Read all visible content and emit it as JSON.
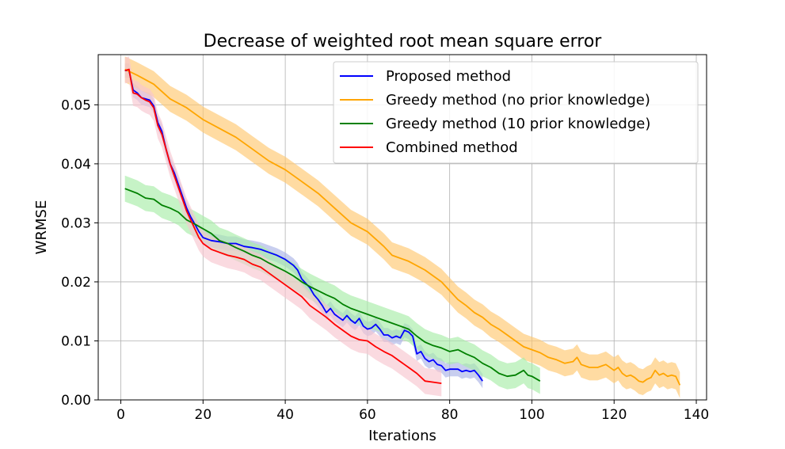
{
  "chart_data": {
    "type": "line",
    "title": "Decrease of weighted root mean square error",
    "xlabel": "Iterations",
    "ylabel": "WRMSE",
    "xlim": [
      -5.5,
      142.5
    ],
    "ylim": [
      0,
      0.0585
    ],
    "xticks": [
      0,
      20,
      40,
      60,
      80,
      100,
      120,
      140
    ],
    "yticks": [
      0,
      0.01,
      0.02,
      0.03,
      0.04,
      0.05
    ],
    "xtick_labels": [
      "0",
      "20",
      "40",
      "60",
      "80",
      "100",
      "120",
      "140"
    ],
    "ytick_labels": [
      "0.00",
      "0.01",
      "0.02",
      "0.03",
      "0.04",
      "0.05"
    ],
    "grid": true,
    "legend_position": "top-right",
    "series": [
      {
        "name": "Proposed method",
        "color": "#0000ff",
        "band_color": "#aab4e6",
        "points": [
          [
            1,
            0.0558
          ],
          [
            2,
            0.0558
          ],
          [
            3,
            0.0525
          ],
          [
            4,
            0.052
          ],
          [
            5,
            0.0512
          ],
          [
            6,
            0.051
          ],
          [
            7,
            0.0508
          ],
          [
            8,
            0.0498
          ],
          [
            9,
            0.047
          ],
          [
            10,
            0.0455
          ],
          [
            11,
            0.0425
          ],
          [
            12,
            0.04
          ],
          [
            13,
            0.0385
          ],
          [
            14,
            0.0365
          ],
          [
            15,
            0.0345
          ],
          [
            16,
            0.0325
          ],
          [
            17,
            0.031
          ],
          [
            18,
            0.0298
          ],
          [
            19,
            0.0285
          ],
          [
            20,
            0.0275
          ],
          [
            22,
            0.027
          ],
          [
            24,
            0.0268
          ],
          [
            26,
            0.0265
          ],
          [
            28,
            0.0265
          ],
          [
            30,
            0.026
          ],
          [
            32,
            0.0258
          ],
          [
            34,
            0.0255
          ],
          [
            36,
            0.025
          ],
          [
            38,
            0.0245
          ],
          [
            40,
            0.0238
          ],
          [
            42,
            0.0228
          ],
          [
            43,
            0.022
          ],
          [
            44,
            0.0205
          ],
          [
            46,
            0.019
          ],
          [
            47,
            0.0178
          ],
          [
            48,
            0.017
          ],
          [
            49,
            0.016
          ],
          [
            50,
            0.0148
          ],
          [
            51,
            0.0155
          ],
          [
            52,
            0.0145
          ],
          [
            53,
            0.014
          ],
          [
            54,
            0.0135
          ],
          [
            55,
            0.0143
          ],
          [
            56,
            0.0135
          ],
          [
            57,
            0.013
          ],
          [
            58,
            0.0138
          ],
          [
            59,
            0.0125
          ],
          [
            60,
            0.012
          ],
          [
            61,
            0.0122
          ],
          [
            62,
            0.0128
          ],
          [
            63,
            0.012
          ],
          [
            64,
            0.011
          ],
          [
            65,
            0.011
          ],
          [
            66,
            0.0105
          ],
          [
            67,
            0.0108
          ],
          [
            68,
            0.0105
          ],
          [
            69,
            0.0118
          ],
          [
            70,
            0.0115
          ],
          [
            71,
            0.0108
          ],
          [
            72,
            0.0078
          ],
          [
            73,
            0.0082
          ],
          [
            74,
            0.007
          ],
          [
            75,
            0.0065
          ],
          [
            76,
            0.0068
          ],
          [
            77,
            0.006
          ],
          [
            78,
            0.0058
          ],
          [
            79,
            0.005
          ],
          [
            80,
            0.0052
          ],
          [
            82,
            0.0052
          ],
          [
            83,
            0.0048
          ],
          [
            84,
            0.005
          ],
          [
            85,
            0.0048
          ],
          [
            86,
            0.005
          ],
          [
            87,
            0.0042
          ],
          [
            88,
            0.0032
          ]
        ],
        "band": 0.0012
      },
      {
        "name": "Greedy method (no prior knowledge)",
        "color": "#ffa500",
        "band_color": "#ffc870",
        "points": [
          [
            1,
            0.056
          ],
          [
            4,
            0.055
          ],
          [
            8,
            0.0535
          ],
          [
            12,
            0.051
          ],
          [
            16,
            0.0495
          ],
          [
            20,
            0.0475
          ],
          [
            24,
            0.046
          ],
          [
            28,
            0.0445
          ],
          [
            32,
            0.0425
          ],
          [
            36,
            0.0405
          ],
          [
            40,
            0.039
          ],
          [
            44,
            0.037
          ],
          [
            48,
            0.035
          ],
          [
            52,
            0.0325
          ],
          [
            56,
            0.03
          ],
          [
            60,
            0.0285
          ],
          [
            64,
            0.026
          ],
          [
            66,
            0.0245
          ],
          [
            70,
            0.0235
          ],
          [
            74,
            0.022
          ],
          [
            78,
            0.02
          ],
          [
            80,
            0.0185
          ],
          [
            82,
            0.017
          ],
          [
            84,
            0.016
          ],
          [
            86,
            0.0148
          ],
          [
            88,
            0.014
          ],
          [
            90,
            0.0128
          ],
          [
            92,
            0.012
          ],
          [
            94,
            0.011
          ],
          [
            96,
            0.01
          ],
          [
            98,
            0.009
          ],
          [
            100,
            0.0085
          ],
          [
            102,
            0.008
          ],
          [
            104,
            0.0072
          ],
          [
            106,
            0.0068
          ],
          [
            108,
            0.0062
          ],
          [
            110,
            0.0065
          ],
          [
            111,
            0.0072
          ],
          [
            112,
            0.006
          ],
          [
            114,
            0.0055
          ],
          [
            116,
            0.0055
          ],
          [
            118,
            0.006
          ],
          [
            120,
            0.005
          ],
          [
            121,
            0.0055
          ],
          [
            122,
            0.0045
          ],
          [
            123,
            0.004
          ],
          [
            124,
            0.0042
          ],
          [
            125,
            0.0038
          ],
          [
            126,
            0.0032
          ],
          [
            127,
            0.003
          ],
          [
            128,
            0.0035
          ],
          [
            129,
            0.0038
          ],
          [
            130,
            0.005
          ],
          [
            131,
            0.0042
          ],
          [
            132,
            0.0045
          ],
          [
            133,
            0.004
          ],
          [
            134,
            0.0042
          ],
          [
            135,
            0.004
          ],
          [
            136,
            0.0025
          ]
        ],
        "band": 0.0022
      },
      {
        "name": "Greedy method (10 prior knowledge)",
        "color": "#008000",
        "band_color": "#a8eca8",
        "points": [
          [
            1,
            0.0358
          ],
          [
            4,
            0.035
          ],
          [
            6,
            0.0342
          ],
          [
            8,
            0.034
          ],
          [
            10,
            0.033
          ],
          [
            12,
            0.0325
          ],
          [
            14,
            0.0318
          ],
          [
            16,
            0.0305
          ],
          [
            18,
            0.0298
          ],
          [
            20,
            0.029
          ],
          [
            22,
            0.0282
          ],
          [
            24,
            0.027
          ],
          [
            26,
            0.0265
          ],
          [
            28,
            0.0258
          ],
          [
            30,
            0.0252
          ],
          [
            32,
            0.0245
          ],
          [
            34,
            0.024
          ],
          [
            36,
            0.0232
          ],
          [
            38,
            0.0225
          ],
          [
            40,
            0.0218
          ],
          [
            42,
            0.021
          ],
          [
            44,
            0.02
          ],
          [
            46,
            0.0192
          ],
          [
            48,
            0.0185
          ],
          [
            50,
            0.0178
          ],
          [
            52,
            0.0172
          ],
          [
            54,
            0.0162
          ],
          [
            56,
            0.0155
          ],
          [
            58,
            0.015
          ],
          [
            60,
            0.0145
          ],
          [
            62,
            0.014
          ],
          [
            64,
            0.0135
          ],
          [
            66,
            0.013
          ],
          [
            68,
            0.0125
          ],
          [
            70,
            0.012
          ],
          [
            72,
            0.0108
          ],
          [
            74,
            0.0098
          ],
          [
            76,
            0.0092
          ],
          [
            78,
            0.0088
          ],
          [
            80,
            0.0082
          ],
          [
            82,
            0.0085
          ],
          [
            84,
            0.0078
          ],
          [
            86,
            0.0072
          ],
          [
            88,
            0.0062
          ],
          [
            90,
            0.0055
          ],
          [
            92,
            0.0045
          ],
          [
            94,
            0.004
          ],
          [
            96,
            0.0042
          ],
          [
            98,
            0.005
          ],
          [
            99,
            0.0042
          ],
          [
            100,
            0.004
          ],
          [
            102,
            0.0032
          ]
        ],
        "band": 0.0022
      },
      {
        "name": "Combined method",
        "color": "#ff0000",
        "band_color": "#f7c6d0",
        "points": [
          [
            1,
            0.0558
          ],
          [
            2,
            0.056
          ],
          [
            3,
            0.052
          ],
          [
            4,
            0.0518
          ],
          [
            5,
            0.0512
          ],
          [
            6,
            0.0508
          ],
          [
            7,
            0.0505
          ],
          [
            8,
            0.0495
          ],
          [
            9,
            0.0465
          ],
          [
            10,
            0.045
          ],
          [
            11,
            0.0425
          ],
          [
            12,
            0.04
          ],
          [
            13,
            0.038
          ],
          [
            14,
            0.036
          ],
          [
            15,
            0.034
          ],
          [
            16,
            0.032
          ],
          [
            17,
            0.0305
          ],
          [
            18,
            0.029
          ],
          [
            19,
            0.0275
          ],
          [
            20,
            0.0265
          ],
          [
            22,
            0.0255
          ],
          [
            24,
            0.025
          ],
          [
            26,
            0.0245
          ],
          [
            28,
            0.0242
          ],
          [
            30,
            0.0238
          ],
          [
            32,
            0.023
          ],
          [
            34,
            0.0225
          ],
          [
            36,
            0.0215
          ],
          [
            38,
            0.0205
          ],
          [
            40,
            0.0195
          ],
          [
            42,
            0.0185
          ],
          [
            44,
            0.0175
          ],
          [
            46,
            0.016
          ],
          [
            48,
            0.015
          ],
          [
            50,
            0.014
          ],
          [
            52,
            0.0128
          ],
          [
            54,
            0.0118
          ],
          [
            56,
            0.0108
          ],
          [
            58,
            0.0102
          ],
          [
            60,
            0.01
          ],
          [
            62,
            0.009
          ],
          [
            64,
            0.0082
          ],
          [
            66,
            0.0075
          ],
          [
            68,
            0.0065
          ],
          [
            69,
            0.006
          ],
          [
            70,
            0.0055
          ],
          [
            72,
            0.0045
          ],
          [
            74,
            0.0032
          ],
          [
            76,
            0.003
          ],
          [
            78,
            0.0028
          ]
        ],
        "band": 0.0022
      }
    ]
  }
}
